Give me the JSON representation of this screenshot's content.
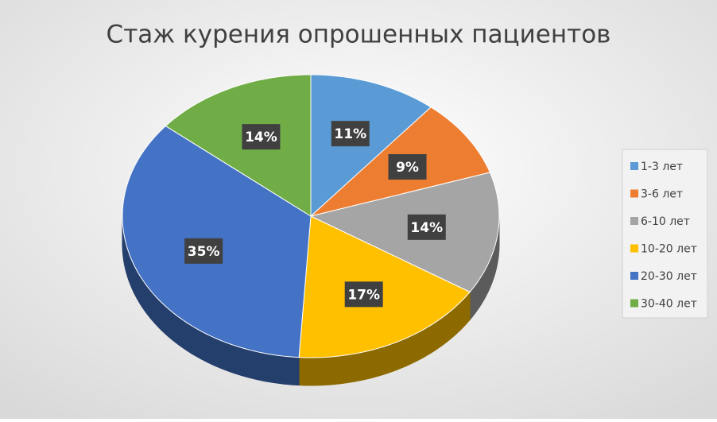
{
  "chart_data": {
    "type": "pie",
    "title": "Стаж курения опрошенных пациентов",
    "categories": [
      "1-3 лет",
      "3-6 лет",
      "6-10 лет",
      "10-20 лет",
      "20-30 лет",
      "30-40 лет"
    ],
    "values": [
      11,
      9,
      14,
      17,
      35,
      14
    ],
    "value_labels": [
      "11%",
      "9%",
      "14%",
      "17%",
      "35%",
      "14%"
    ],
    "colors": [
      "#5b9bd5",
      "#ed7d31",
      "#a5a5a5",
      "#ffc000",
      "#4472c4",
      "#70ad47"
    ],
    "legend": "right"
  }
}
